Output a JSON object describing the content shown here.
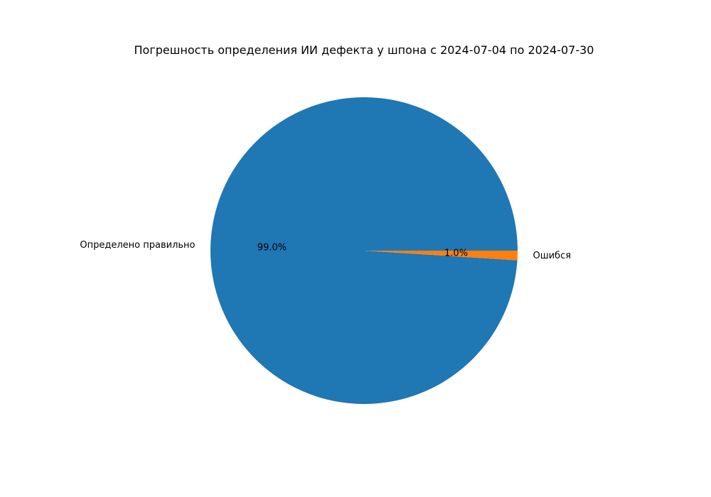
{
  "chart_data": {
    "type": "pie",
    "title": "Погрешность определения ИИ дефекта у шпона с 2024-07-04 по 2024-07-30",
    "slices": [
      {
        "label": "Определено правильно",
        "value": 99.0,
        "pct_label": "99.0%",
        "color": "#1f77b4"
      },
      {
        "label": "Ошибся",
        "value": 1.0,
        "pct_label": "1.0%",
        "color": "#ff7f0e"
      }
    ],
    "start_angle_deg": 0,
    "direction": "counterclockwise",
    "legend": "none"
  }
}
